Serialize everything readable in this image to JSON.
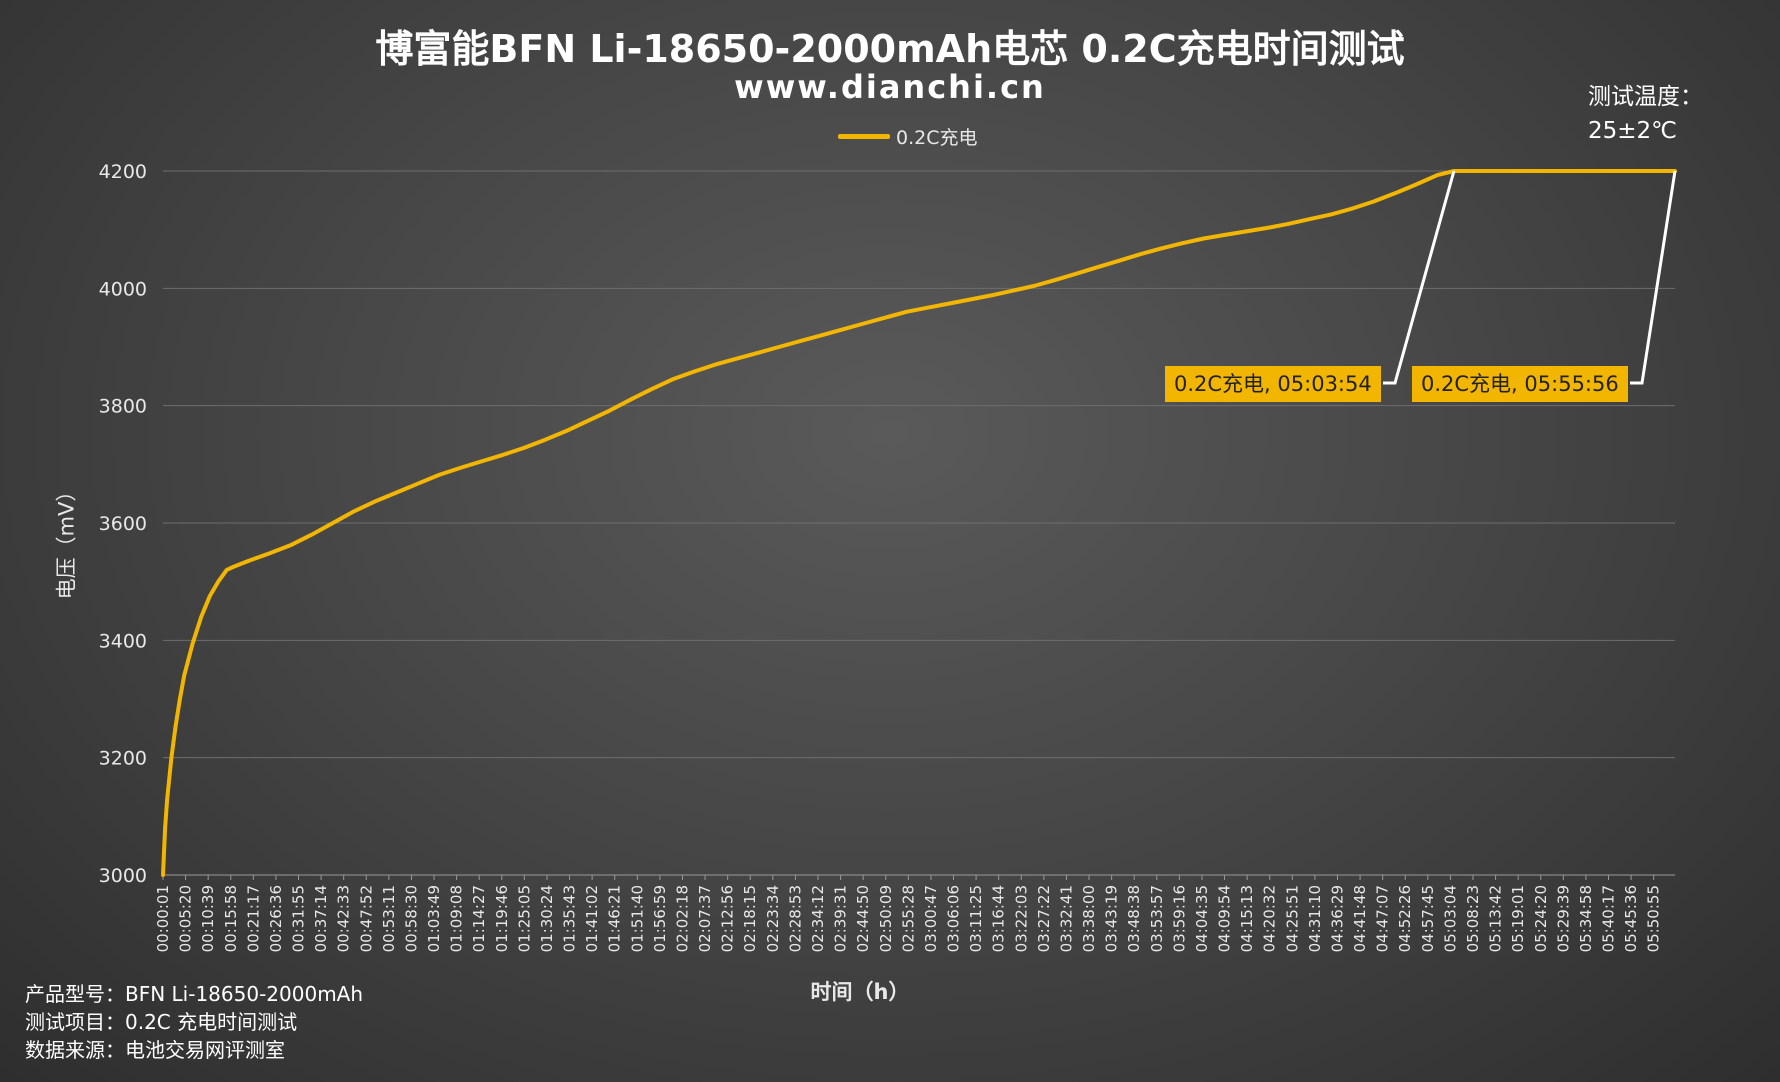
{
  "chart_data": {
    "type": "line",
    "title": "博富能BFN Li-18650-2000mAh电芯 0.2C充电时间测试",
    "subtitle": "www.dianchi.cn",
    "xlabel": "时间（h）",
    "ylabel": "电压（mV）",
    "ylim": [
      3000,
      4200
    ],
    "yticks": [
      3000,
      3200,
      3400,
      3600,
      3800,
      4000,
      4200
    ],
    "xlim": [
      "00:00:01",
      "05:55:56"
    ],
    "grid": true,
    "legend_position": "top-center",
    "x_tick_labels": [
      "00:00:01",
      "00:05:20",
      "00:10:39",
      "00:15:58",
      "00:21:17",
      "00:26:36",
      "00:31:55",
      "00:37:14",
      "00:42:33",
      "00:47:52",
      "00:53:11",
      "00:58:30",
      "01:03:49",
      "01:09:08",
      "01:14:27",
      "01:19:46",
      "01:25:05",
      "01:30:24",
      "01:35:43",
      "01:41:02",
      "01:46:21",
      "01:51:40",
      "01:56:59",
      "02:02:18",
      "02:07:37",
      "02:12:56",
      "02:18:15",
      "02:23:34",
      "02:28:53",
      "02:34:12",
      "02:39:31",
      "02:44:50",
      "02:50:09",
      "02:55:28",
      "03:00:47",
      "03:06:06",
      "03:11:25",
      "03:16:44",
      "03:22:03",
      "03:27:22",
      "03:32:41",
      "03:38:00",
      "03:43:19",
      "03:48:38",
      "03:53:57",
      "03:59:16",
      "04:04:35",
      "04:09:54",
      "04:15:13",
      "04:20:32",
      "04:25:51",
      "04:31:10",
      "04:36:29",
      "04:41:48",
      "04:47:07",
      "04:52:26",
      "04:57:45",
      "05:03:04",
      "05:08:23",
      "05:13:42",
      "05:19:01",
      "05:24:20",
      "05:29:39",
      "05:34:58",
      "05:40:17",
      "05:45:36",
      "05:50:55"
    ],
    "series": [
      {
        "name": "0.2C充电",
        "color": "#f2b600",
        "points": [
          [
            "00:00:01",
            3000
          ],
          [
            "00:00:30",
            3080
          ],
          [
            "00:01:00",
            3130
          ],
          [
            "00:02:00",
            3200
          ],
          [
            "00:03:00",
            3255
          ],
          [
            "00:04:00",
            3300
          ],
          [
            "00:05:00",
            3340
          ],
          [
            "00:07:00",
            3395
          ],
          [
            "00:09:00",
            3440
          ],
          [
            "00:11:00",
            3475
          ],
          [
            "00:13:00",
            3500
          ],
          [
            "00:15:00",
            3520
          ],
          [
            "00:16:30",
            3525
          ],
          [
            "00:20:00",
            3535
          ],
          [
            "00:25:00",
            3548
          ],
          [
            "00:30:00",
            3562
          ],
          [
            "00:35:00",
            3580
          ],
          [
            "00:40:00",
            3600
          ],
          [
            "00:45:00",
            3620
          ],
          [
            "00:50:00",
            3637
          ],
          [
            "00:55:00",
            3652
          ],
          [
            "01:00:00",
            3667
          ],
          [
            "01:05:00",
            3682
          ],
          [
            "01:10:00",
            3694
          ],
          [
            "01:15:00",
            3705
          ],
          [
            "01:20:00",
            3716
          ],
          [
            "01:25:00",
            3728
          ],
          [
            "01:30:00",
            3742
          ],
          [
            "01:35:00",
            3757
          ],
          [
            "01:40:00",
            3774
          ],
          [
            "01:45:00",
            3791
          ],
          [
            "01:50:00",
            3810
          ],
          [
            "01:55:00",
            3828
          ],
          [
            "02:00:00",
            3845
          ],
          [
            "02:05:00",
            3858
          ],
          [
            "02:10:00",
            3870
          ],
          [
            "02:15:00",
            3880
          ],
          [
            "02:20:00",
            3890
          ],
          [
            "02:25:00",
            3900
          ],
          [
            "02:30:00",
            3910
          ],
          [
            "02:35:00",
            3920
          ],
          [
            "02:40:00",
            3930
          ],
          [
            "02:45:00",
            3940
          ],
          [
            "02:50:00",
            3950
          ],
          [
            "02:55:00",
            3960
          ],
          [
            "03:00:00",
            3967
          ],
          [
            "03:05:00",
            3974
          ],
          [
            "03:10:00",
            3981
          ],
          [
            "03:15:00",
            3988
          ],
          [
            "03:20:00",
            3996
          ],
          [
            "03:25:00",
            4004
          ],
          [
            "03:30:00",
            4014
          ],
          [
            "03:35:00",
            4025
          ],
          [
            "03:40:00",
            4036
          ],
          [
            "03:45:00",
            4047
          ],
          [
            "03:50:00",
            4058
          ],
          [
            "03:55:00",
            4068
          ],
          [
            "04:00:00",
            4077
          ],
          [
            "04:05:00",
            4085
          ],
          [
            "04:10:00",
            4091
          ],
          [
            "04:15:00",
            4097
          ],
          [
            "04:20:00",
            4103
          ],
          [
            "04:25:00",
            4110
          ],
          [
            "04:30:00",
            4118
          ],
          [
            "04:35:00",
            4126
          ],
          [
            "04:40:00",
            4136
          ],
          [
            "04:45:00",
            4148
          ],
          [
            "04:50:00",
            4162
          ],
          [
            "04:55:00",
            4177
          ],
          [
            "05:00:00",
            4193
          ],
          [
            "05:03:54",
            4200
          ],
          [
            "05:10:00",
            4200
          ],
          [
            "05:20:00",
            4200
          ],
          [
            "05:30:00",
            4200
          ],
          [
            "05:40:00",
            4200
          ],
          [
            "05:50:00",
            4200
          ],
          [
            "05:55:56",
            4200
          ]
        ]
      }
    ],
    "annotations": [
      {
        "text": "0.2C充电, 05:03:54",
        "x": "05:03:54",
        "y": 4200
      },
      {
        "text": "0.2C充电, 05:55:56",
        "x": "05:55:56",
        "y": 4200
      }
    ]
  },
  "temperature": {
    "line1": "测试温度：",
    "line2": "25±2℃"
  },
  "footer": {
    "line1": "产品型号：BFN Li-18650-2000mAh",
    "line2": "测试项目：0.2C 充电时间测试",
    "line3": "数据来源：电池交易网评测室"
  }
}
